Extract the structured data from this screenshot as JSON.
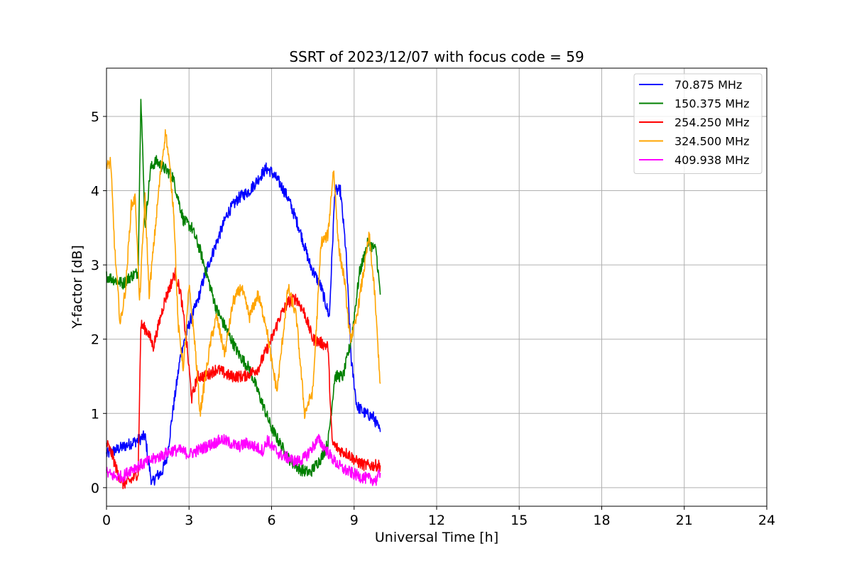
{
  "chart_data": {
    "type": "line",
    "title": "SSRT of 2023/12/07 with focus code = 59",
    "xlabel": "Universal Time [h]",
    "ylabel": "Y-factor [dB]",
    "xlim": [
      0,
      24
    ],
    "ylim": [
      -0.25,
      5.65
    ],
    "xticks": [
      0,
      3,
      6,
      9,
      12,
      15,
      18,
      21,
      24
    ],
    "yticks": [
      0,
      1,
      2,
      3,
      4,
      5
    ],
    "grid": true,
    "legend_position": "top-right",
    "series": [
      {
        "name": " 70.875 MHz",
        "color": "#0000ff",
        "x": [
          0,
          0.3,
          0.6,
          0.9,
          1.2,
          1.4,
          1.55,
          1.65,
          1.8,
          2.0,
          2.2,
          2.4,
          2.7,
          3.0,
          3.3,
          3.6,
          4.0,
          4.4,
          4.8,
          5.2,
          5.6,
          5.8,
          6.0,
          6.3,
          6.6,
          7.0,
          7.4,
          7.8,
          8.1,
          8.3,
          8.5,
          8.7,
          8.9,
          9.1,
          9.4,
          9.7,
          9.95
        ],
        "y": [
          0.45,
          0.5,
          0.55,
          0.6,
          0.65,
          0.7,
          0.3,
          0.05,
          0.15,
          0.2,
          0.4,
          1.0,
          1.8,
          2.2,
          2.5,
          2.9,
          3.3,
          3.7,
          3.9,
          4.0,
          4.2,
          4.3,
          4.25,
          4.1,
          3.9,
          3.5,
          3.0,
          2.7,
          2.3,
          4.0,
          4.0,
          3.2,
          1.7,
          1.1,
          1.0,
          0.95,
          0.75
        ]
      },
      {
        "name": "150.375 MHz",
        "color": "#008000",
        "x": [
          0,
          0.3,
          0.6,
          0.9,
          1.15,
          1.25,
          1.4,
          1.6,
          1.8,
          2.1,
          2.4,
          2.6,
          2.8,
          3.1,
          3.4,
          3.7,
          4.0,
          4.4,
          4.8,
          5.2,
          5.6,
          6.0,
          6.3,
          6.6,
          7.0,
          7.4,
          7.8,
          8.05,
          8.3,
          8.6,
          8.9,
          9.2,
          9.5,
          9.8,
          9.95
        ],
        "y": [
          2.85,
          2.8,
          2.75,
          2.85,
          2.9,
          5.3,
          3.5,
          4.3,
          4.4,
          4.3,
          4.2,
          3.9,
          3.6,
          3.5,
          3.2,
          2.8,
          2.4,
          2.1,
          1.8,
          1.6,
          1.2,
          0.8,
          0.6,
          0.4,
          0.25,
          0.2,
          0.4,
          0.6,
          1.5,
          1.5,
          2.0,
          2.9,
          3.3,
          3.2,
          2.6
        ]
      },
      {
        "name": "254.250 MHz",
        "color": "#ff0000",
        "x": [
          0,
          0.2,
          0.4,
          0.6,
          0.9,
          1.15,
          1.25,
          1.5,
          1.7,
          1.9,
          2.1,
          2.3,
          2.5,
          2.7,
          2.9,
          3.1,
          3.3,
          3.6,
          4.0,
          4.5,
          5.0,
          5.5,
          6.0,
          6.3,
          6.6,
          6.9,
          7.2,
          7.5,
          7.8,
          8.05,
          8.2,
          8.5,
          8.8,
          9.1,
          9.4,
          9.7,
          9.95
        ],
        "y": [
          0.6,
          0.45,
          0.2,
          0.05,
          0.1,
          0.2,
          2.2,
          2.1,
          1.9,
          2.2,
          2.5,
          2.7,
          2.9,
          2.6,
          2.0,
          1.2,
          1.5,
          1.5,
          1.6,
          1.5,
          1.5,
          1.6,
          2.0,
          2.3,
          2.5,
          2.55,
          2.35,
          2.0,
          1.95,
          1.9,
          0.6,
          0.5,
          0.45,
          0.35,
          0.3,
          0.3,
          0.3
        ]
      },
      {
        "name": "324.500 MHz",
        "color": "#ffa500",
        "x": [
          0,
          0.15,
          0.3,
          0.5,
          0.7,
          0.9,
          1.05,
          1.2,
          1.4,
          1.55,
          1.75,
          1.95,
          2.15,
          2.3,
          2.45,
          2.6,
          2.8,
          3.0,
          3.2,
          3.4,
          3.6,
          3.8,
          4.0,
          4.3,
          4.6,
          4.9,
          5.2,
          5.5,
          5.8,
          6.0,
          6.2,
          6.4,
          6.6,
          6.9,
          7.2,
          7.5,
          7.8,
          8.05,
          8.25,
          8.45,
          8.65,
          8.85,
          9.05,
          9.3,
          9.55,
          9.75,
          9.95
        ],
        "y": [
          4.3,
          4.4,
          3.2,
          2.2,
          2.7,
          3.8,
          3.9,
          2.5,
          3.9,
          2.6,
          3.4,
          4.2,
          4.8,
          4.3,
          3.7,
          2.2,
          1.6,
          2.7,
          2.0,
          1.0,
          1.5,
          2.0,
          2.3,
          1.8,
          2.5,
          2.7,
          2.3,
          2.6,
          2.2,
          1.7,
          1.3,
          2.0,
          2.7,
          2.3,
          1.0,
          1.3,
          3.3,
          3.4,
          4.3,
          3.2,
          2.8,
          2.0,
          2.2,
          2.8,
          3.4,
          2.6,
          1.4
        ]
      },
      {
        "name": "409.938 MHz",
        "color": "#ff00ff",
        "x": [
          0,
          0.3,
          0.6,
          0.9,
          1.2,
          1.5,
          1.8,
          2.1,
          2.4,
          2.7,
          3.0,
          3.3,
          3.6,
          3.9,
          4.2,
          4.5,
          4.8,
          5.1,
          5.4,
          5.7,
          5.85,
          6.0,
          6.3,
          6.6,
          6.9,
          7.2,
          7.5,
          7.7,
          8.0,
          8.3,
          8.6,
          8.9,
          9.2,
          9.5,
          9.8,
          9.95
        ],
        "y": [
          0.2,
          0.15,
          0.15,
          0.25,
          0.3,
          0.35,
          0.4,
          0.45,
          0.5,
          0.5,
          0.45,
          0.5,
          0.55,
          0.6,
          0.65,
          0.6,
          0.55,
          0.6,
          0.55,
          0.5,
          0.65,
          0.55,
          0.45,
          0.4,
          0.35,
          0.4,
          0.55,
          0.65,
          0.5,
          0.35,
          0.25,
          0.2,
          0.15,
          0.12,
          0.1,
          0.2
        ]
      }
    ]
  }
}
